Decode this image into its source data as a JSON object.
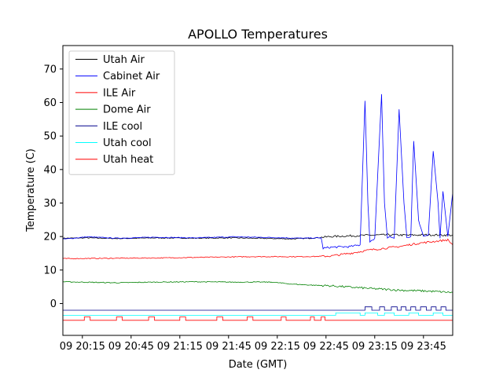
{
  "chart_data": {
    "type": "line",
    "title": "APOLLO Temperatures",
    "xlabel": "Date (GMT)",
    "ylabel": "Temperature (C)",
    "xlim": [
      20.05,
      24.05
    ],
    "ylim": [
      -9.5,
      77
    ],
    "x_ticks": [
      {
        "value": 20.25,
        "label": "09 20:15"
      },
      {
        "value": 20.75,
        "label": "09 20:45"
      },
      {
        "value": 21.25,
        "label": "09 21:15"
      },
      {
        "value": 21.75,
        "label": "09 21:45"
      },
      {
        "value": 22.25,
        "label": "09 22:15"
      },
      {
        "value": 22.75,
        "label": "09 22:45"
      },
      {
        "value": 23.25,
        "label": "09 23:15"
      },
      {
        "value": 23.75,
        "label": "09 23:45"
      }
    ],
    "y_ticks": [
      0,
      10,
      20,
      30,
      40,
      50,
      60,
      70
    ],
    "legend": {
      "location": "upper-left"
    },
    "series": [
      {
        "name": "Utah Air",
        "color": "#000000",
        "x": [
          20.05,
          20.3,
          20.6,
          21.0,
          21.4,
          21.8,
          22.2,
          22.4,
          22.6,
          22.8,
          23.0,
          23.2,
          23.4,
          23.6,
          23.8,
          24.05
        ],
        "y": [
          19.5,
          19.6,
          19.4,
          19.6,
          19.5,
          19.6,
          19.4,
          19.3,
          19.5,
          20.0,
          20.2,
          20.4,
          20.5,
          20.4,
          20.5,
          20.4
        ]
      },
      {
        "name": "Cabinet Air",
        "color": "#0000ff",
        "x": [
          20.05,
          20.3,
          20.6,
          21.0,
          21.4,
          21.8,
          22.2,
          22.5,
          22.7,
          22.72,
          22.8,
          23.0,
          23.1,
          23.15,
          23.18,
          23.2,
          23.25,
          23.32,
          23.35,
          23.38,
          23.42,
          23.45,
          23.5,
          23.55,
          23.58,
          23.62,
          23.65,
          23.7,
          23.75,
          23.8,
          23.85,
          23.9,
          23.92,
          23.95,
          24.0,
          24.05
        ],
        "y": [
          19.2,
          19.9,
          19.5,
          19.8,
          19.6,
          19.9,
          19.7,
          19.5,
          19.6,
          16.5,
          16.8,
          17.0,
          17.5,
          60.5,
          30.0,
          18.5,
          19.5,
          62.5,
          30.0,
          19.5,
          20.0,
          19.5,
          58.0,
          30.0,
          19.6,
          20.0,
          48.5,
          25.0,
          20.0,
          20.5,
          45.5,
          30.0,
          19.5,
          33.5,
          20.0,
          33.0
        ]
      },
      {
        "name": "ILE Air",
        "color": "#ff0000",
        "x": [
          20.05,
          20.5,
          21.0,
          21.5,
          22.0,
          22.5,
          22.72,
          22.8,
          23.0,
          23.2,
          23.35,
          23.5,
          23.7,
          23.85,
          24.0,
          24.05
        ],
        "y": [
          13.4,
          13.5,
          13.6,
          13.8,
          14.0,
          14.0,
          14.1,
          14.2,
          15.0,
          16.0,
          16.5,
          17.0,
          18.0,
          18.5,
          19.0,
          17.5
        ]
      },
      {
        "name": "Dome Air",
        "color": "#008000",
        "x": [
          20.05,
          20.6,
          21.0,
          21.4,
          21.8,
          22.2,
          22.4,
          22.6,
          22.8,
          23.0,
          23.2,
          23.5,
          23.8,
          24.05
        ],
        "y": [
          6.5,
          6.2,
          6.4,
          6.5,
          6.4,
          6.4,
          5.8,
          5.5,
          5.3,
          4.9,
          4.5,
          4.0,
          3.7,
          3.3
        ]
      },
      {
        "name": "ILE cool",
        "color": "#00008b",
        "x": [
          20.05,
          23.15,
          23.15,
          23.22,
          23.22,
          23.3,
          23.3,
          23.35,
          23.35,
          23.42,
          23.42,
          23.48,
          23.48,
          23.52,
          23.52,
          23.57,
          23.57,
          23.62,
          23.62,
          23.67,
          23.67,
          23.72,
          23.72,
          23.78,
          23.78,
          23.83,
          23.83,
          23.88,
          23.88,
          23.93,
          23.93,
          23.98,
          23.98,
          24.05
        ],
        "y": [
          -2,
          -2,
          -1,
          -1,
          -2,
          -2,
          -1,
          -1,
          -2,
          -2,
          -1,
          -1,
          -2,
          -2,
          -1,
          -1,
          -2,
          -2,
          -1,
          -1,
          -2,
          -2,
          -1,
          -1,
          -2,
          -2,
          -1,
          -1,
          -2,
          -2,
          -1,
          -1,
          -2,
          -2
        ]
      },
      {
        "name": "Utah cool",
        "color": "#00ffff",
        "x": [
          20.05,
          22.85,
          22.85,
          23.1,
          23.1,
          23.15,
          23.15,
          23.28,
          23.28,
          23.35,
          23.35,
          23.45,
          23.45,
          23.6,
          23.6,
          23.7,
          23.7,
          23.85,
          23.85,
          23.95,
          23.95,
          24.05
        ],
        "y": [
          -3.5,
          -3.5,
          -2.8,
          -2.8,
          -3.5,
          -3.5,
          -2.8,
          -2.8,
          -3.5,
          -3.5,
          -2.8,
          -2.8,
          -3.5,
          -3.5,
          -2.8,
          -2.8,
          -3.5,
          -3.5,
          -2.8,
          -2.8,
          -3.5,
          -3.5
        ]
      },
      {
        "name": "Utah heat",
        "color": "#ff0000",
        "x": [
          20.05,
          20.27,
          20.27,
          20.33,
          20.33,
          20.6,
          20.6,
          20.66,
          20.66,
          20.93,
          20.93,
          20.99,
          20.99,
          21.25,
          21.25,
          21.31,
          21.31,
          21.63,
          21.63,
          21.69,
          21.69,
          21.94,
          21.94,
          22.0,
          22.0,
          22.29,
          22.29,
          22.34,
          22.34,
          22.59,
          22.59,
          22.63,
          22.63,
          22.7,
          22.7,
          22.74,
          22.74,
          24.05
        ],
        "y": [
          -5,
          -5,
          -4,
          -4,
          -5,
          -5,
          -4,
          -4,
          -5,
          -5,
          -4,
          -4,
          -5,
          -5,
          -4,
          -4,
          -5,
          -5,
          -4,
          -4,
          -5,
          -5,
          -4,
          -4,
          -5,
          -5,
          -4,
          -4,
          -5,
          -5,
          -4,
          -4,
          -5,
          -5,
          -4,
          -4,
          -5,
          -5
        ]
      }
    ]
  }
}
